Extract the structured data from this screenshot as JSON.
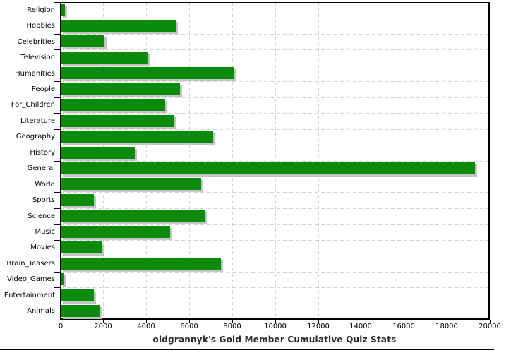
{
  "chart_data": {
    "type": "bar",
    "orientation": "horizontal",
    "title": "oldgrannyk's Gold Member Cumulative Quiz Stats",
    "xlabel": "",
    "ylabel": "",
    "categories": [
      "Religion",
      "Hobbies",
      "Celebrities",
      "Television",
      "Humanities",
      "People",
      "For_Children",
      "Literature",
      "Geography",
      "History",
      "General",
      "World",
      "Sports",
      "Science",
      "Music",
      "Movies",
      "Brain_Teasers",
      "Video_Games",
      "Entertainment",
      "Animals"
    ],
    "values": [
      200,
      5350,
      2050,
      4050,
      8100,
      5550,
      4850,
      5250,
      7100,
      3450,
      19300,
      6550,
      1550,
      6700,
      5100,
      1900,
      7450,
      150,
      1550,
      1850
    ],
    "xlim": [
      0,
      20000
    ],
    "xticks": [
      0,
      2000,
      4000,
      6000,
      8000,
      10000,
      12000,
      14000,
      16000,
      18000,
      20000
    ],
    "xtick_labels": [
      "0",
      "2000",
      "4000",
      "6000",
      "8000",
      "10000",
      "12000",
      "14000",
      "16000",
      "18000",
      "20000"
    ],
    "grid": "dashed",
    "legend": "none",
    "colors": {
      "bar": "#0b8b0b",
      "bar_shadow": "#c3c3c3",
      "grid": "#d2d2d2",
      "axis": "#000000",
      "title": "#2a2a2a",
      "background": "#ffffff"
    }
  }
}
